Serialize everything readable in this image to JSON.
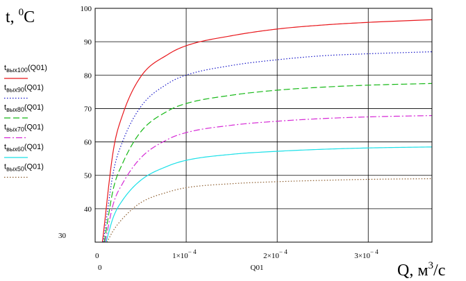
{
  "chart_data": {
    "type": "line",
    "ylabel": "t, ⁰C",
    "ylabel_main": "t, ",
    "ylabel_sup": "0",
    "ylabel_unit": "C",
    "xlabel_main": "Q, м",
    "xlabel_sup": "3",
    "xlabel_unit": "/c",
    "x_var": "Q01",
    "xlim": [
      0,
      0.00037
    ],
    "ylim": [
      30,
      100
    ],
    "x_ticks": [
      {
        "value": 0.0001,
        "mant": "1×10",
        "exp": "− 4"
      },
      {
        "value": 0.0002,
        "mant": "2×10",
        "exp": "− 4"
      },
      {
        "value": 0.0003,
        "mant": "3×10",
        "exp": "− 4"
      }
    ],
    "x_min_label": "0",
    "x_min_label_lower": "0",
    "y_min_label": "30",
    "y_ticks": [
      40,
      50,
      60,
      70,
      80,
      90,
      100
    ],
    "grid": true,
    "legend_position": "left",
    "series": [
      {
        "name_main": "t",
        "name_sub": "вых100",
        "name_arg": "(Q01)",
        "color": "#e8161b",
        "dash": "",
        "start_x": 8e-06,
        "points": [
          [
            8e-06,
            30
          ],
          [
            2e-05,
            57.5
          ],
          [
            3e-05,
            68
          ],
          [
            5e-05,
            79.5
          ],
          [
            8e-05,
            86.2
          ],
          [
            0.0001,
            88.8
          ],
          [
            0.00015,
            91.8
          ],
          [
            0.0002,
            93.8
          ],
          [
            0.00025,
            95
          ],
          [
            0.0003,
            95.8
          ],
          [
            0.00037,
            96.6
          ]
        ]
      },
      {
        "name_main": "t",
        "name_sub": "вых90",
        "name_arg": "(Q01)",
        "color": "#1515c8",
        "dash": "1.5,2.5",
        "start_x": 9e-06,
        "points": [
          [
            9e-06,
            30
          ],
          [
            2e-05,
            51
          ],
          [
            3e-05,
            60
          ],
          [
            5e-05,
            70.5
          ],
          [
            8e-05,
            77.5
          ],
          [
            0.0001,
            80
          ],
          [
            0.00015,
            82.9
          ],
          [
            0.0002,
            84.6
          ],
          [
            0.00025,
            85.8
          ],
          [
            0.0003,
            86.4
          ],
          [
            0.00037,
            87
          ]
        ]
      },
      {
        "name_main": "t",
        "name_sub": "вых80",
        "name_arg": "(Q01)",
        "color": "#14b814",
        "dash": "9,4",
        "start_x": 1e-05,
        "points": [
          [
            1e-05,
            30
          ],
          [
            2e-05,
            46
          ],
          [
            3e-05,
            53.5
          ],
          [
            5e-05,
            63
          ],
          [
            8e-05,
            69.3
          ],
          [
            0.0001,
            71.5
          ],
          [
            0.00015,
            74
          ],
          [
            0.0002,
            75.5
          ],
          [
            0.00025,
            76.4
          ],
          [
            0.0003,
            77
          ],
          [
            0.00037,
            77.5
          ]
        ]
      },
      {
        "name_main": "t",
        "name_sub": "вых70",
        "name_arg": "(Q01)",
        "color": "#d628d6",
        "dash": "9,3,2,3",
        "start_x": 1.1e-05,
        "points": [
          [
            1.1e-05,
            30
          ],
          [
            2e-05,
            41.5
          ],
          [
            3e-05,
            47.5
          ],
          [
            5e-05,
            55.2
          ],
          [
            8e-05,
            60.8
          ],
          [
            0.0001,
            62.8
          ],
          [
            0.00015,
            65
          ],
          [
            0.0002,
            66.2
          ],
          [
            0.00025,
            67
          ],
          [
            0.0003,
            67.5
          ],
          [
            0.00037,
            67.9
          ]
        ]
      },
      {
        "name_main": "t",
        "name_sub": "вых60",
        "name_arg": "(Q01)",
        "color": "#1be0e8",
        "dash": "",
        "start_x": 1.2e-05,
        "points": [
          [
            1.2e-05,
            30
          ],
          [
            2e-05,
            37.5
          ],
          [
            3e-05,
            42.5
          ],
          [
            5e-05,
            48.5
          ],
          [
            8e-05,
            52.8
          ],
          [
            0.0001,
            54.5
          ],
          [
            0.00015,
            56.3
          ],
          [
            0.0002,
            57.2
          ],
          [
            0.00025,
            57.8
          ],
          [
            0.0003,
            58.2
          ],
          [
            0.00037,
            58.5
          ]
        ]
      },
      {
        "name_main": "t",
        "name_sub": "вых50",
        "name_arg": "(Q01)",
        "color": "#8a5a2a",
        "dash": "1.5,2.5",
        "start_x": 1.3e-05,
        "points": [
          [
            1.3e-05,
            30
          ],
          [
            2e-05,
            33.5
          ],
          [
            3e-05,
            37
          ],
          [
            5e-05,
            41.8
          ],
          [
            8e-05,
            45
          ],
          [
            0.0001,
            46.3
          ],
          [
            0.00015,
            47.5
          ],
          [
            0.0002,
            48.1
          ],
          [
            0.00025,
            48.5
          ],
          [
            0.0003,
            48.8
          ],
          [
            0.00037,
            49
          ]
        ]
      }
    ]
  }
}
